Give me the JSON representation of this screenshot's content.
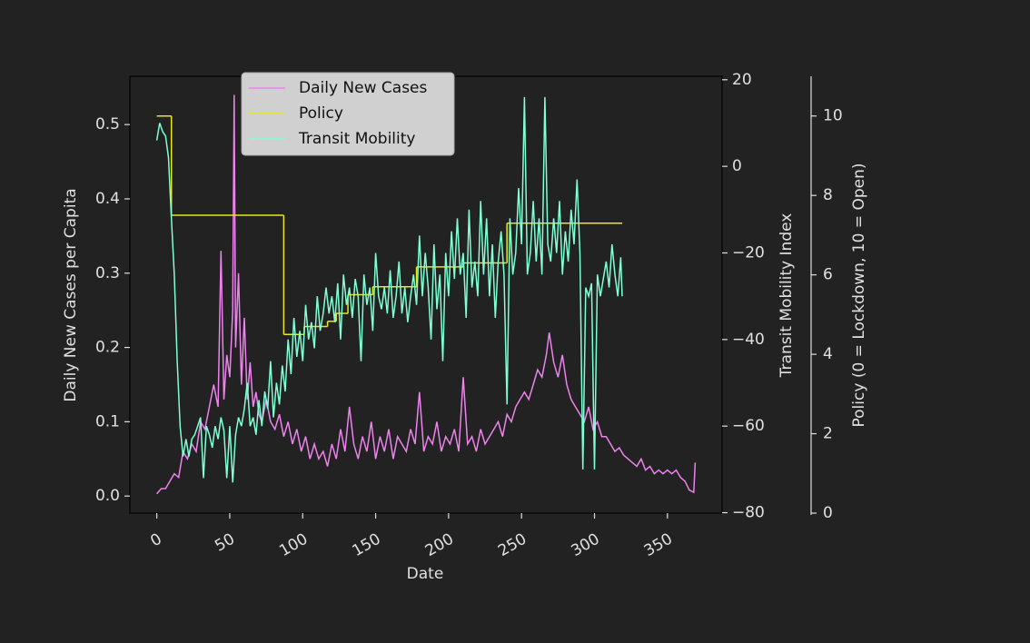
{
  "chart_data": {
    "type": "line",
    "xlabel": "Date",
    "ylabel": "Daily New Cases per Capita",
    "y2label": "Transit Mobility Index",
    "y3label": "Policy (0 = Lockdown, 10 = Open)",
    "xlim": [
      -18.45,
      387.45
    ],
    "xticks": [
      0,
      50,
      100,
      150,
      200,
      250,
      300,
      350
    ],
    "ylim": [
      -0.023,
      0.565
    ],
    "yticks": [
      {
        "value": 0,
        "label": "0.0"
      },
      0.1,
      0.2,
      0.3,
      0.4,
      0.5
    ],
    "y2lim": [
      -80.1,
      20.8
    ],
    "y2ticks": [
      {
        "value": -80,
        "label": "−80"
      },
      {
        "value": -60,
        "label": "−60"
      },
      {
        "value": -40,
        "label": "−40"
      },
      {
        "value": -20,
        "label": "−20"
      },
      0,
      20
    ],
    "y3lim": [
      0,
      11
    ],
    "y3ticks": [
      0,
      2,
      4,
      6,
      8,
      10
    ],
    "legend": "upper left",
    "series": [
      {
        "name": "Daily New Cases",
        "color": "#ee82ee",
        "axis": "y",
        "x": [
          0,
          3,
          6,
          9,
          12,
          15,
          18,
          21,
          24,
          27,
          30,
          33,
          36,
          39,
          42,
          44,
          46,
          48,
          50,
          52,
          53,
          54,
          56,
          58,
          60,
          62,
          64,
          66,
          68,
          70,
          72,
          75,
          78,
          81,
          84,
          87,
          90,
          93,
          96,
          99,
          102,
          105,
          108,
          111,
          114,
          117,
          120,
          123,
          126,
          129,
          132,
          135,
          138,
          141,
          144,
          147,
          150,
          153,
          156,
          159,
          162,
          165,
          168,
          171,
          174,
          177,
          180,
          183,
          186,
          189,
          192,
          195,
          198,
          201,
          204,
          207,
          210,
          213,
          216,
          219,
          222,
          225,
          228,
          231,
          234,
          237,
          240,
          243,
          246,
          249,
          252,
          255,
          258,
          261,
          264,
          267,
          269,
          272,
          275,
          278,
          281,
          284,
          287,
          290,
          293,
          296,
          299,
          302,
          305,
          308,
          311,
          314,
          317,
          320,
          323,
          326,
          329,
          332,
          335,
          338,
          341,
          344,
          347,
          350,
          353,
          356,
          359,
          362,
          365,
          368,
          369
        ],
        "values": [
          0.003,
          0.01,
          0.01,
          0.02,
          0.03,
          0.025,
          0.06,
          0.05,
          0.07,
          0.06,
          0.1,
          0.09,
          0.12,
          0.15,
          0.12,
          0.33,
          0.13,
          0.19,
          0.16,
          0.25,
          0.54,
          0.2,
          0.3,
          0.15,
          0.24,
          0.13,
          0.18,
          0.12,
          0.14,
          0.11,
          0.1,
          0.13,
          0.1,
          0.09,
          0.11,
          0.08,
          0.1,
          0.07,
          0.09,
          0.06,
          0.08,
          0.05,
          0.07,
          0.05,
          0.06,
          0.04,
          0.07,
          0.05,
          0.09,
          0.06,
          0.12,
          0.07,
          0.05,
          0.08,
          0.06,
          0.1,
          0.05,
          0.08,
          0.06,
          0.09,
          0.05,
          0.08,
          0.07,
          0.06,
          0.09,
          0.07,
          0.14,
          0.06,
          0.08,
          0.07,
          0.1,
          0.06,
          0.08,
          0.07,
          0.09,
          0.06,
          0.16,
          0.07,
          0.08,
          0.06,
          0.09,
          0.07,
          0.08,
          0.09,
          0.1,
          0.08,
          0.11,
          0.1,
          0.12,
          0.13,
          0.14,
          0.13,
          0.15,
          0.17,
          0.16,
          0.19,
          0.22,
          0.18,
          0.16,
          0.19,
          0.15,
          0.13,
          0.12,
          0.11,
          0.1,
          0.12,
          0.09,
          0.1,
          0.08,
          0.08,
          0.07,
          0.06,
          0.065,
          0.055,
          0.05,
          0.045,
          0.04,
          0.05,
          0.035,
          0.04,
          0.03,
          0.035,
          0.03,
          0.035,
          0.03,
          0.035,
          0.025,
          0.02,
          0.008,
          0.005,
          0.045
        ]
      },
      {
        "name": "Policy",
        "color": "#e8e81a",
        "axis": "y3",
        "drawstyle": "steps-post",
        "x": [
          0,
          10,
          87,
          101,
          117,
          123,
          131,
          148,
          178,
          210,
          240,
          319
        ],
        "values": [
          10,
          7.5,
          4.5,
          4.7,
          4.83,
          5.03,
          5.5,
          5.7,
          6.2,
          6.3,
          7.3,
          7.3
        ]
      },
      {
        "name": "Transit Mobility",
        "color": "#7fffd4",
        "axis": "y2",
        "x": [
          0,
          2,
          4,
          6,
          8,
          10,
          12,
          14,
          16,
          18,
          20,
          22,
          24,
          26,
          28,
          30,
          32,
          34,
          36,
          38,
          40,
          42,
          44,
          46,
          48,
          50,
          52,
          54,
          56,
          58,
          60,
          62,
          64,
          66,
          68,
          70,
          72,
          74,
          76,
          78,
          80,
          82,
          84,
          86,
          88,
          90,
          92,
          94,
          96,
          98,
          100,
          102,
          104,
          106,
          108,
          110,
          112,
          114,
          116,
          118,
          120,
          122,
          124,
          126,
          128,
          130,
          132,
          134,
          136,
          138,
          140,
          142,
          144,
          146,
          148,
          150,
          152,
          154,
          156,
          158,
          160,
          162,
          164,
          166,
          168,
          170,
          172,
          174,
          176,
          178,
          180,
          182,
          184,
          186,
          188,
          190,
          192,
          194,
          196,
          198,
          200,
          202,
          204,
          206,
          208,
          210,
          212,
          214,
          216,
          218,
          220,
          222,
          224,
          226,
          228,
          230,
          232,
          234,
          236,
          238,
          240,
          242,
          244,
          246,
          248,
          250,
          252,
          254,
          256,
          258,
          260,
          262,
          264,
          266,
          268,
          270,
          272,
          274,
          276,
          278,
          280,
          282,
          284,
          286,
          288,
          290,
          292,
          294,
          296,
          298,
          300,
          302,
          304,
          306,
          308,
          310,
          312,
          314,
          316,
          318,
          319
        ],
        "values": [
          6,
          10,
          8,
          7,
          2,
          -12,
          -25,
          -45,
          -60,
          -67,
          -63,
          -67,
          -63,
          -62,
          -60,
          -58,
          -72,
          -60,
          -62,
          -65,
          -60,
          -63,
          -58,
          -61,
          -72,
          -60,
          -73,
          -62,
          -58,
          -60,
          -56,
          -50,
          -60,
          -58,
          -62,
          -54,
          -60,
          -52,
          -56,
          -45,
          -58,
          -50,
          -55,
          -46,
          -52,
          -40,
          -48,
          -35,
          -44,
          -38,
          -45,
          -32,
          -40,
          -36,
          -42,
          -30,
          -38,
          -34,
          -28,
          -34,
          -30,
          -36,
          -27,
          -40,
          -25,
          -32,
          -28,
          -35,
          -26,
          -30,
          -45,
          -25,
          -32,
          -28,
          -38,
          -20,
          -30,
          -33,
          -28,
          -34,
          -24,
          -35,
          -30,
          -22,
          -34,
          -28,
          -36,
          -30,
          -25,
          -32,
          -16,
          -30,
          -20,
          -28,
          -40,
          -18,
          -33,
          -25,
          -45,
          -20,
          -30,
          -15,
          -26,
          -12,
          -25,
          -20,
          -35,
          -10,
          -28,
          -22,
          -30,
          -8,
          -25,
          -12,
          -30,
          -18,
          -35,
          -22,
          -15,
          -25,
          -55,
          -12,
          -25,
          -20,
          -5,
          -18,
          16,
          -25,
          -20,
          -8,
          -22,
          -12,
          -25,
          16,
          -18,
          -22,
          -12,
          -20,
          -8,
          -25,
          -15,
          -22,
          -10,
          -18,
          -3,
          -20,
          -70,
          -28,
          -30,
          -27,
          -70,
          -25,
          -30,
          -26,
          -22,
          -28,
          -18,
          -25,
          -30,
          -21,
          -30
        ]
      }
    ]
  }
}
